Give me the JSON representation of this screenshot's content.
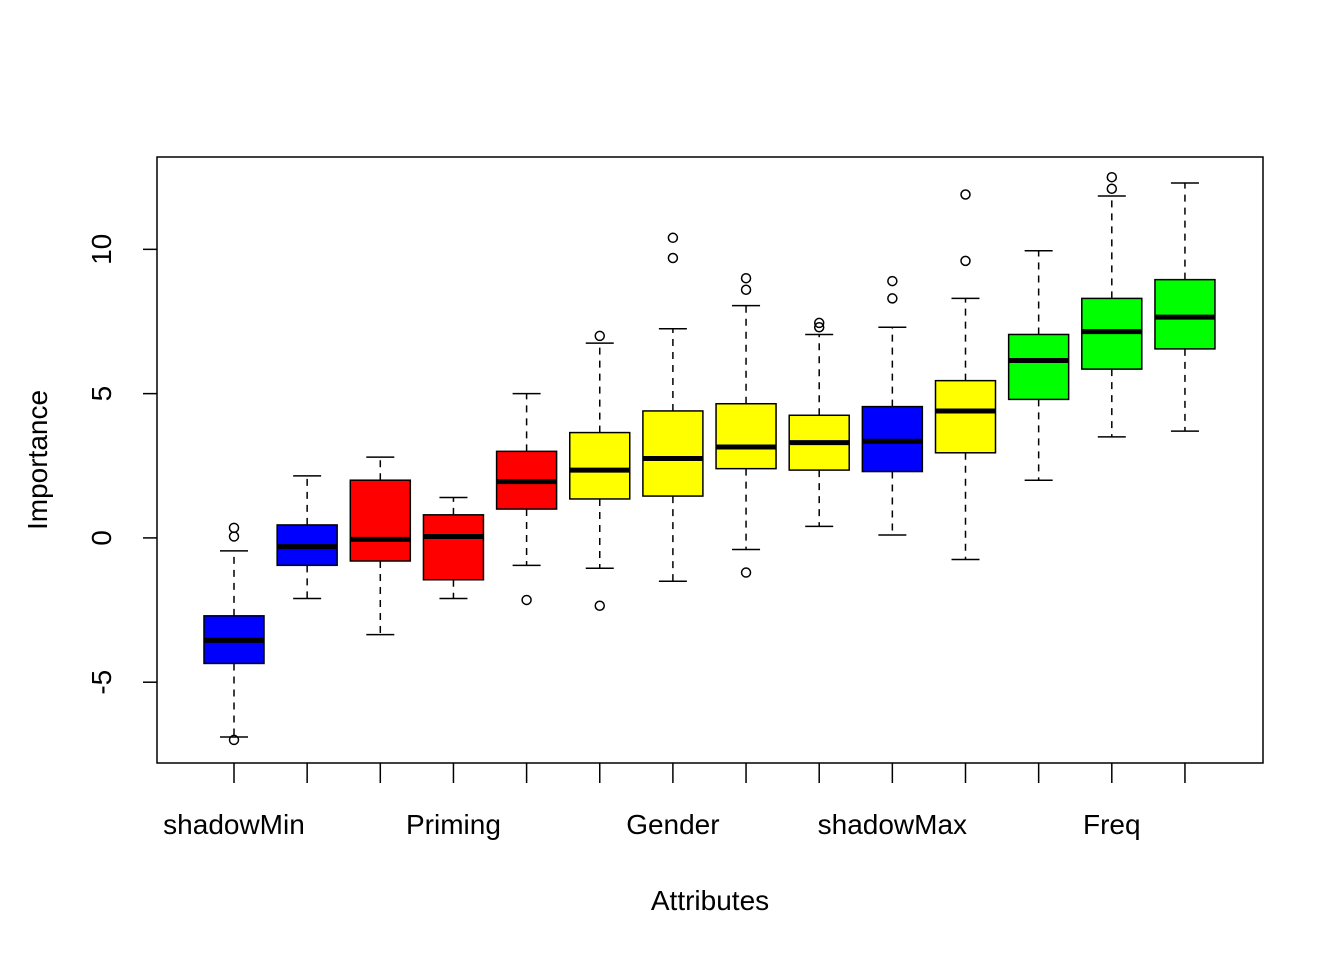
{
  "chart_data": {
    "type": "boxplot",
    "title": "",
    "xlabel": "Attributes",
    "ylabel": "Importance",
    "ylim": [
      -7.8,
      13.2
    ],
    "y_ticks": [
      -5,
      0,
      5,
      10
    ],
    "y_tick_labels": [
      "-5",
      "0",
      "5",
      "10"
    ],
    "grid": false,
    "legend": "none",
    "x_tick_labels": [
      {
        "index": 0,
        "label": "shadowMin"
      },
      {
        "index": 3,
        "label": "Priming"
      },
      {
        "index": 6,
        "label": "Gender"
      },
      {
        "index": 9,
        "label": "shadowMax"
      },
      {
        "index": 12,
        "label": "Freq"
      }
    ],
    "boxes": [
      {
        "color": "#0000ff",
        "min": -6.9,
        "q1": -4.35,
        "median": -3.55,
        "q3": -2.7,
        "max": -0.45,
        "outliers": [
          0.05,
          0.35,
          -7.0
        ]
      },
      {
        "color": "#0000ff",
        "min": -2.1,
        "q1": -0.95,
        "median": -0.3,
        "q3": 0.45,
        "max": 2.15,
        "outliers": []
      },
      {
        "color": "#ff0000",
        "min": -3.35,
        "q1": -0.8,
        "median": -0.05,
        "q3": 2.0,
        "max": 2.8,
        "outliers": []
      },
      {
        "color": "#ff0000",
        "min": -2.1,
        "q1": -1.45,
        "median": 0.05,
        "q3": 0.8,
        "max": 1.4,
        "outliers": []
      },
      {
        "color": "#ff0000",
        "min": -0.95,
        "q1": 1.0,
        "median": 1.95,
        "q3": 3.0,
        "max": 5.0,
        "outliers": [
          -2.15
        ]
      },
      {
        "color": "#ffff00",
        "min": -1.05,
        "q1": 1.35,
        "median": 2.35,
        "q3": 3.65,
        "max": 6.75,
        "outliers": [
          7.0,
          -2.35
        ]
      },
      {
        "color": "#ffff00",
        "min": -1.5,
        "q1": 1.45,
        "median": 2.75,
        "q3": 4.4,
        "max": 7.25,
        "outliers": [
          9.7,
          10.4
        ]
      },
      {
        "color": "#ffff00",
        "min": -0.4,
        "q1": 2.4,
        "median": 3.15,
        "q3": 4.65,
        "max": 8.05,
        "outliers": [
          8.6,
          9.0,
          -1.2
        ]
      },
      {
        "color": "#ffff00",
        "min": 0.4,
        "q1": 2.35,
        "median": 3.3,
        "q3": 4.25,
        "max": 7.05,
        "outliers": [
          7.3,
          7.45
        ]
      },
      {
        "color": "#0000ff",
        "min": 0.1,
        "q1": 2.3,
        "median": 3.35,
        "q3": 4.55,
        "max": 7.3,
        "outliers": [
          8.3,
          8.9
        ]
      },
      {
        "color": "#ffff00",
        "min": -0.75,
        "q1": 2.95,
        "median": 4.4,
        "q3": 5.45,
        "max": 8.3,
        "outliers": [
          9.6,
          11.9
        ]
      },
      {
        "color": "#00ff00",
        "min": 2.0,
        "q1": 4.8,
        "median": 6.15,
        "q3": 7.05,
        "max": 9.95,
        "outliers": []
      },
      {
        "color": "#00ff00",
        "min": 3.5,
        "q1": 5.85,
        "median": 7.15,
        "q3": 8.3,
        "max": 11.85,
        "outliers": [
          12.1,
          12.5
        ]
      },
      {
        "color": "#00ff00",
        "min": 3.7,
        "q1": 6.55,
        "median": 7.65,
        "q3": 8.95,
        "max": 12.3,
        "outliers": []
      }
    ]
  }
}
